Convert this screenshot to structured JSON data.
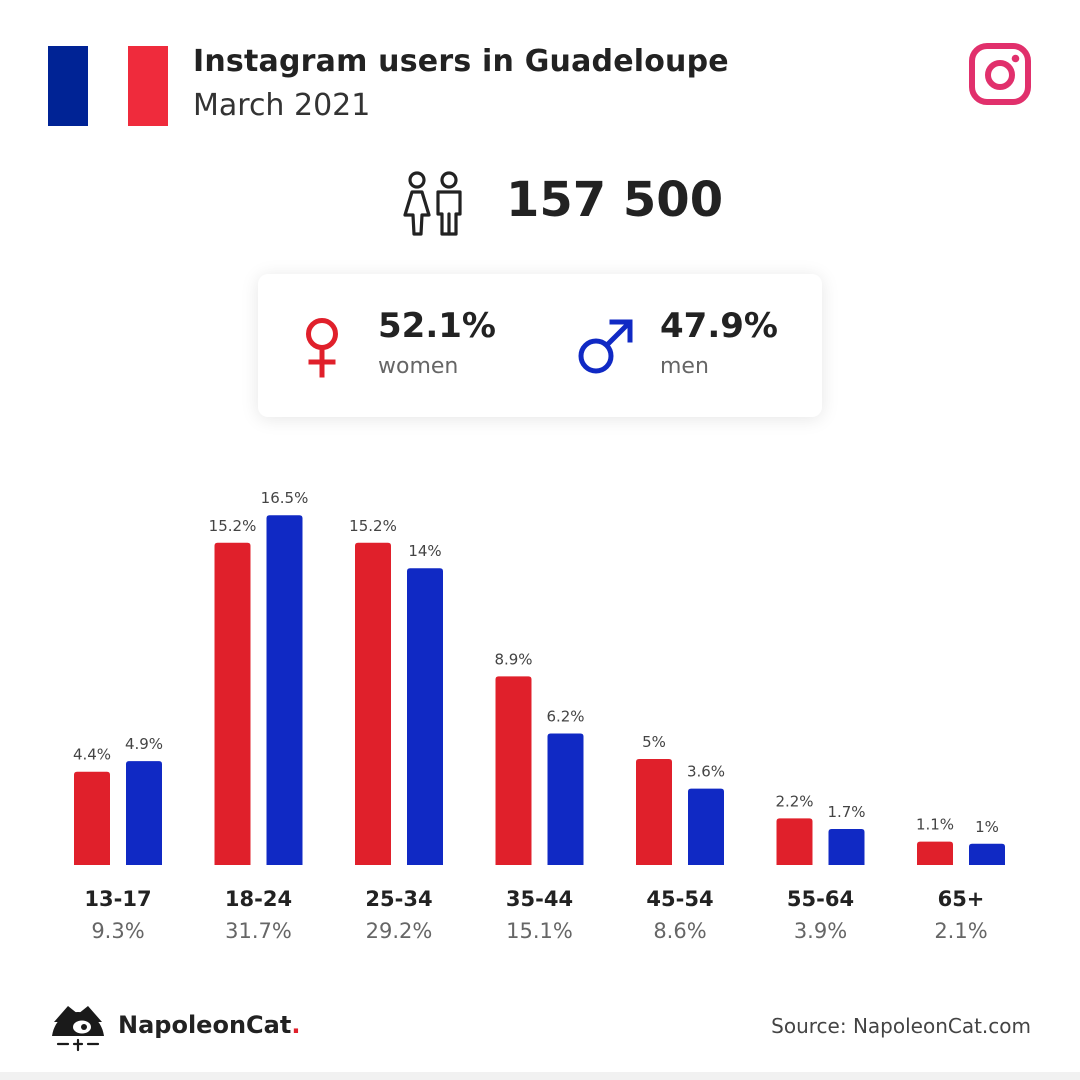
{
  "header": {
    "title": "Instagram users in Guadeloupe",
    "subtitle": "March 2021"
  },
  "flag_colors": [
    "#002395",
    "#ffffff",
    "#ef2b3c"
  ],
  "icons": {
    "platform": "instagram-icon",
    "users": "people-icon",
    "women": "female-symbol-icon",
    "men": "male-symbol-icon"
  },
  "colors": {
    "instagram": "#e1306c",
    "women": "#e0202b",
    "men": "#1029c4"
  },
  "total_users": "157 500",
  "gender": {
    "women": {
      "pct": "52.1%",
      "label": "women"
    },
    "men": {
      "pct": "47.9%",
      "label": "men"
    }
  },
  "chart_data": {
    "type": "bar",
    "categories": [
      "13-17",
      "18-24",
      "25-34",
      "35-44",
      "45-54",
      "55-64",
      "65+"
    ],
    "category_totals": [
      "9.3%",
      "31.7%",
      "29.2%",
      "15.1%",
      "8.6%",
      "3.9%",
      "2.1%"
    ],
    "series": [
      {
        "color": "#e0202b",
        "values": [
          4.4,
          15.2,
          15.2,
          8.9,
          5,
          2.2,
          1.1
        ],
        "labels": [
          "4.4%",
          "15.2%",
          "15.2%",
          "8.9%",
          "5%",
          "2.2%",
          "1.1%"
        ]
      },
      {
        "color": "#1029c4",
        "values": [
          4.9,
          16.5,
          14,
          6.2,
          3.6,
          1.7,
          1
        ],
        "labels": [
          "4.9%",
          "16.5%",
          "14%",
          "6.2%",
          "3.6%",
          "1.7%",
          "1%"
        ]
      }
    ]
  },
  "footer": {
    "brand": "NapoleonCat",
    "brand_dot": ".",
    "source": "Source: NapoleonCat.com"
  }
}
